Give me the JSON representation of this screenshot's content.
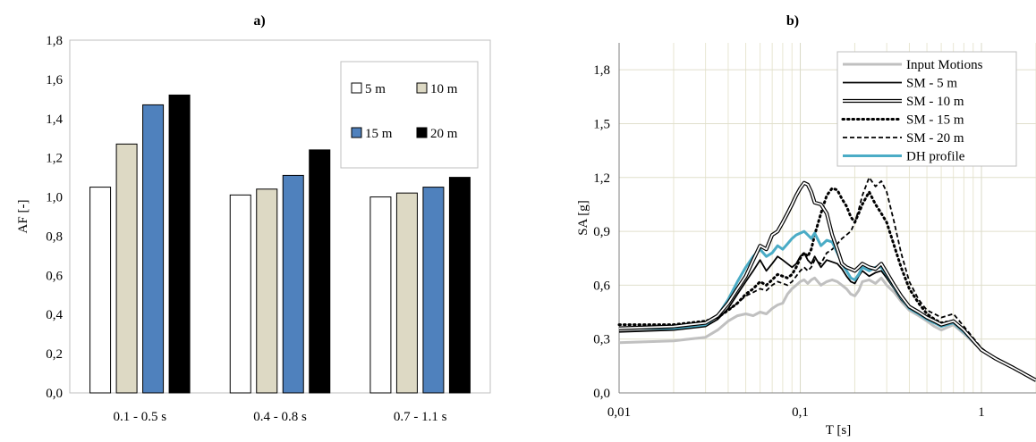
{
  "chart_data": [
    {
      "type": "bar",
      "title": "a)",
      "xlabel": "",
      "ylabel": "AF [-]",
      "ylim": [
        0,
        1.8
      ],
      "yticks": [
        "0,0",
        "0,2",
        "0,4",
        "0,6",
        "0,8",
        "1,0",
        "1,2",
        "1,4",
        "1,6",
        "1,8"
      ],
      "grid": false,
      "legend_position": "top-right",
      "categories": [
        "0.1 - 0.5 s",
        "0.4 - 0.8 s",
        "0.7 - 1.1 s"
      ],
      "series": [
        {
          "name": "5 m",
          "values": [
            1.05,
            1.01,
            1.0
          ],
          "color": "#ffffff"
        },
        {
          "name": "10 m",
          "values": [
            1.27,
            1.04,
            1.02
          ],
          "color": "#ddd9c4"
        },
        {
          "name": "15 m",
          "values": [
            1.47,
            1.11,
            1.05
          ],
          "color": "#4f81bd"
        },
        {
          "name": "20 m",
          "values": [
            1.52,
            1.24,
            1.1
          ],
          "color": "#000000"
        }
      ]
    },
    {
      "type": "line",
      "title": "b)",
      "xlabel": "T [s]",
      "ylabel": "SA [g]",
      "xscale": "log",
      "xlim": [
        0.01,
        2.0
      ],
      "ylim": [
        0,
        1.95
      ],
      "xticks": [
        "0,01",
        "0,1",
        "1"
      ],
      "yticks": [
        "0,0",
        "0,3",
        "0,6",
        "0,9",
        "1,2",
        "1,5",
        "1,8"
      ],
      "grid": true,
      "legend_position": "top-right",
      "x": [
        0.01,
        0.02,
        0.03,
        0.035,
        0.04,
        0.045,
        0.05,
        0.055,
        0.06,
        0.065,
        0.07,
        0.075,
        0.08,
        0.085,
        0.09,
        0.095,
        0.1,
        0.105,
        0.11,
        0.115,
        0.12,
        0.13,
        0.14,
        0.15,
        0.16,
        0.17,
        0.18,
        0.19,
        0.2,
        0.21,
        0.22,
        0.24,
        0.26,
        0.28,
        0.3,
        0.33,
        0.36,
        0.4,
        0.45,
        0.5,
        0.55,
        0.6,
        0.7,
        0.8,
        1.0,
        1.2,
        1.5,
        2.0
      ],
      "series": [
        {
          "name": "Input Motions",
          "color": "#c0c0c0",
          "style": "solid-thick",
          "values": [
            0.28,
            0.29,
            0.31,
            0.35,
            0.4,
            0.43,
            0.44,
            0.43,
            0.45,
            0.44,
            0.47,
            0.49,
            0.5,
            0.55,
            0.58,
            0.6,
            0.62,
            0.63,
            0.61,
            0.63,
            0.64,
            0.6,
            0.62,
            0.63,
            0.62,
            0.6,
            0.58,
            0.55,
            0.54,
            0.57,
            0.62,
            0.63,
            0.61,
            0.64,
            0.6,
            0.56,
            0.51,
            0.46,
            0.43,
            0.4,
            0.37,
            0.35,
            0.38,
            0.33,
            0.24,
            0.19,
            0.14,
            0.07
          ]
        },
        {
          "name": "SM - 5 m",
          "color": "#000000",
          "style": "solid",
          "values": [
            0.34,
            0.35,
            0.37,
            0.41,
            0.47,
            0.55,
            0.62,
            0.68,
            0.74,
            0.68,
            0.72,
            0.76,
            0.74,
            0.72,
            0.7,
            0.72,
            0.76,
            0.78,
            0.74,
            0.72,
            0.76,
            0.7,
            0.74,
            0.73,
            0.72,
            0.69,
            0.65,
            0.62,
            0.61,
            0.65,
            0.68,
            0.65,
            0.67,
            0.68,
            0.64,
            0.58,
            0.52,
            0.47,
            0.44,
            0.42,
            0.39,
            0.37,
            0.39,
            0.34,
            0.24,
            0.19,
            0.14,
            0.07
          ]
        },
        {
          "name": "SM - 10 m",
          "color": "#000000",
          "style": "double",
          "values": [
            0.36,
            0.37,
            0.39,
            0.43,
            0.5,
            0.58,
            0.65,
            0.74,
            0.82,
            0.8,
            0.88,
            0.9,
            0.95,
            1.0,
            1.05,
            1.1,
            1.14,
            1.17,
            1.16,
            1.12,
            1.06,
            1.05,
            1.0,
            0.88,
            0.8,
            0.72,
            0.7,
            0.69,
            0.68,
            0.7,
            0.72,
            0.7,
            0.69,
            0.72,
            0.67,
            0.6,
            0.54,
            0.48,
            0.45,
            0.42,
            0.4,
            0.38,
            0.4,
            0.35,
            0.24,
            0.19,
            0.14,
            0.07
          ]
        },
        {
          "name": "SM - 15 m",
          "color": "#000000",
          "style": "dotted",
          "values": [
            0.38,
            0.38,
            0.4,
            0.42,
            0.46,
            0.5,
            0.55,
            0.58,
            0.62,
            0.6,
            0.63,
            0.66,
            0.65,
            0.64,
            0.66,
            0.7,
            0.75,
            0.78,
            0.76,
            0.8,
            0.88,
            1.0,
            1.1,
            1.14,
            1.13,
            1.08,
            1.04,
            0.98,
            0.95,
            1.0,
            1.05,
            1.12,
            1.05,
            1.0,
            0.95,
            0.82,
            0.7,
            0.58,
            0.5,
            0.44,
            0.41,
            0.39,
            0.4,
            0.35,
            0.24,
            0.19,
            0.14,
            0.07
          ]
        },
        {
          "name": "SM - 20 m",
          "color": "#000000",
          "style": "dashed",
          "values": [
            0.36,
            0.37,
            0.39,
            0.42,
            0.46,
            0.5,
            0.54,
            0.56,
            0.58,
            0.57,
            0.6,
            0.62,
            0.61,
            0.6,
            0.62,
            0.65,
            0.68,
            0.7,
            0.68,
            0.7,
            0.74,
            0.72,
            0.78,
            0.8,
            0.83,
            0.86,
            0.88,
            0.9,
            0.95,
            1.02,
            1.1,
            1.2,
            1.15,
            1.18,
            1.12,
            0.95,
            0.78,
            0.62,
            0.52,
            0.46,
            0.44,
            0.42,
            0.44,
            0.37,
            0.25,
            0.19,
            0.14,
            0.07
          ]
        },
        {
          "name": "DH profile",
          "color": "#4bacc6",
          "style": "solid-thick",
          "values": [
            0.36,
            0.36,
            0.38,
            0.43,
            0.52,
            0.62,
            0.7,
            0.76,
            0.8,
            0.76,
            0.78,
            0.82,
            0.8,
            0.83,
            0.86,
            0.88,
            0.89,
            0.9,
            0.88,
            0.86,
            0.89,
            0.82,
            0.85,
            0.84,
            0.78,
            0.72,
            0.68,
            0.64,
            0.63,
            0.66,
            0.7,
            0.68,
            0.7,
            0.7,
            0.66,
            0.59,
            0.53,
            0.47,
            0.44,
            0.41,
            0.39,
            0.37,
            0.39,
            0.34,
            0.24,
            0.19,
            0.14,
            0.07
          ]
        }
      ]
    }
  ]
}
